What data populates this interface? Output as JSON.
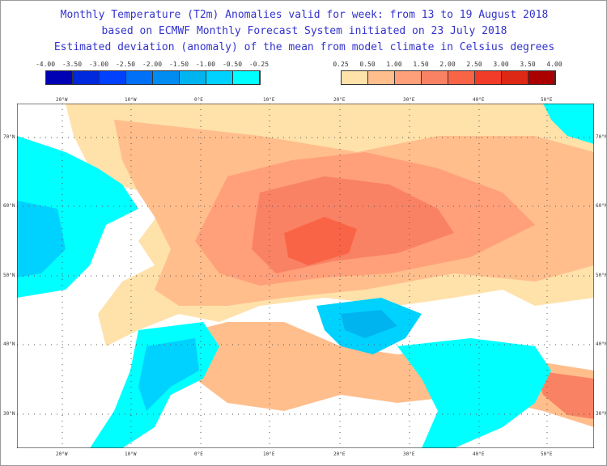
{
  "title": {
    "line1": "Monthly Temperature (T2m) Anomalies valid for week: from 13 to 19 August 2018",
    "line2": "based on ECMWF Monthly Forecast System initiated on 23 July 2018",
    "line3": "Estimated deviation (anomaly) of the mean from model climate in Celsius degrees"
  },
  "legend_cold": {
    "ticks": [
      "-4.00",
      "-3.50",
      "-3.00",
      "-2.50",
      "-2.00",
      "-1.50",
      "-1.00",
      "-0.50",
      "-0.25"
    ],
    "colors": [
      "#0000b4",
      "#0028dc",
      "#0040ff",
      "#0070f8",
      "#008cf0",
      "#00b4f0",
      "#00d2ff",
      "#00ffff"
    ]
  },
  "legend_warm": {
    "ticks": [
      "0.25",
      "0.50",
      "1.00",
      "1.50",
      "2.00",
      "2.50",
      "3.00",
      "3.50",
      "4.00"
    ],
    "colors": [
      "#ffe1aa",
      "#ffbe8c",
      "#ffa07a",
      "#fa8264",
      "#fa6446",
      "#f03c28",
      "#dc2814",
      "#aa0000"
    ]
  },
  "map": {
    "lon_labels": [
      "20°W",
      "10°W",
      "0°E",
      "10°E",
      "20°E",
      "30°E",
      "40°E",
      "50°E"
    ],
    "lat_labels": [
      "70°N",
      "60°N",
      "50°N",
      "40°N",
      "30°N"
    ]
  }
}
